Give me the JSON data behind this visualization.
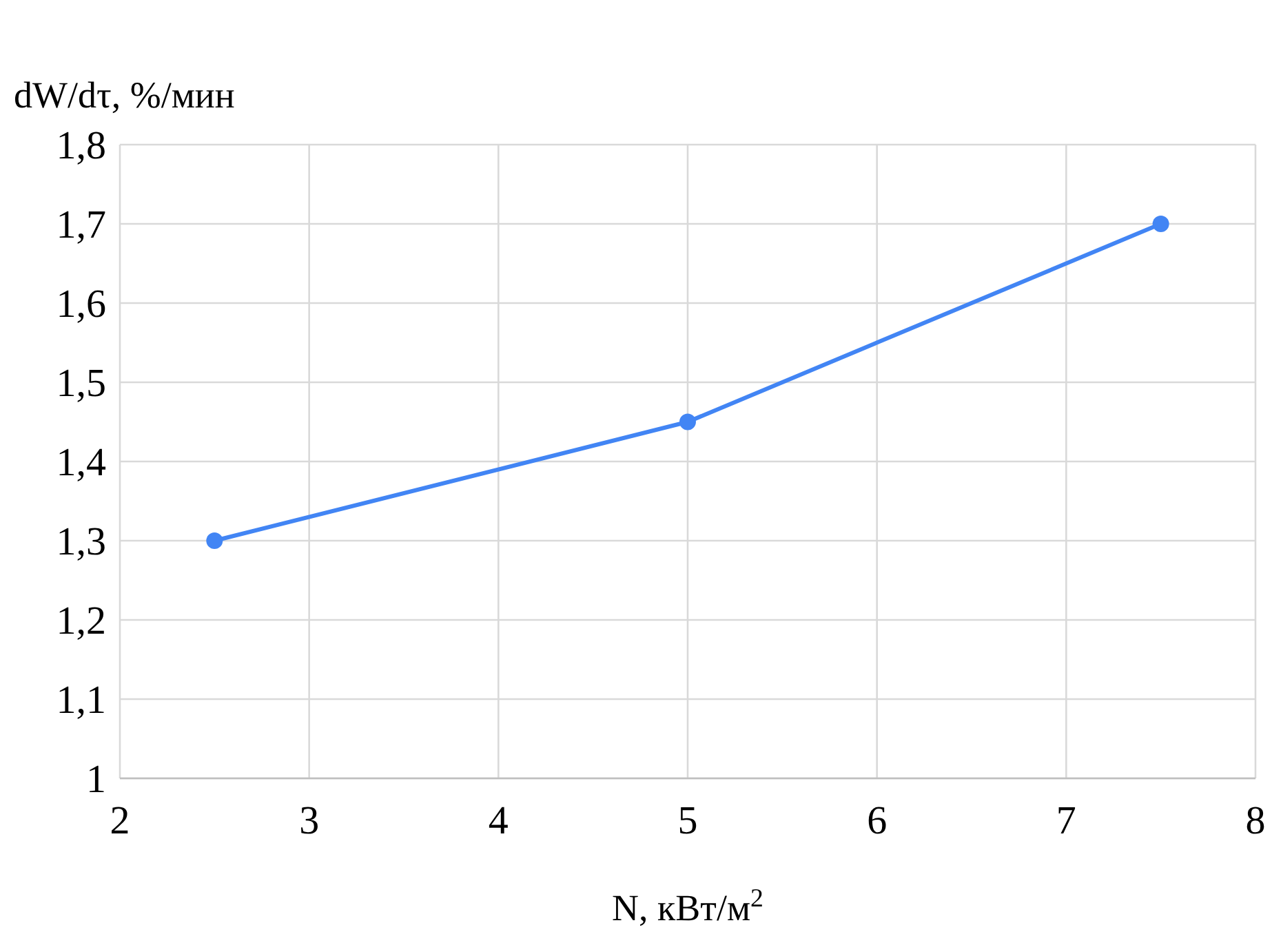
{
  "chart_data": {
    "type": "line",
    "ylabel": "dW/dτ, %/мин",
    "xlabel": "N, кВт/м$^{2}$",
    "x": [
      2.5,
      5,
      7.5
    ],
    "series": [
      {
        "color": "#4285f4",
        "values": [
          1.3,
          1.45,
          1.7
        ]
      }
    ],
    "xlim": [
      2,
      8
    ],
    "xticks": [
      2,
      3,
      4,
      5,
      6,
      7,
      8
    ],
    "ylim": [
      1,
      1.8
    ],
    "yticks": [
      1,
      {
        "value": 1.1,
        "label": "1,1"
      },
      {
        "value": 1.2,
        "label": "1,2"
      },
      {
        "value": 1.3,
        "label": "1,3"
      },
      {
        "value": 1.4,
        "label": "1,4"
      },
      {
        "value": 1.5,
        "label": "1,5"
      },
      {
        "value": 1.6,
        "label": "1,6"
      },
      {
        "value": 1.7,
        "label": "1,7"
      },
      {
        "value": 1.8,
        "label": "1,8"
      }
    ],
    "grid": true,
    "marker": "circle",
    "line_style": "solid"
  }
}
